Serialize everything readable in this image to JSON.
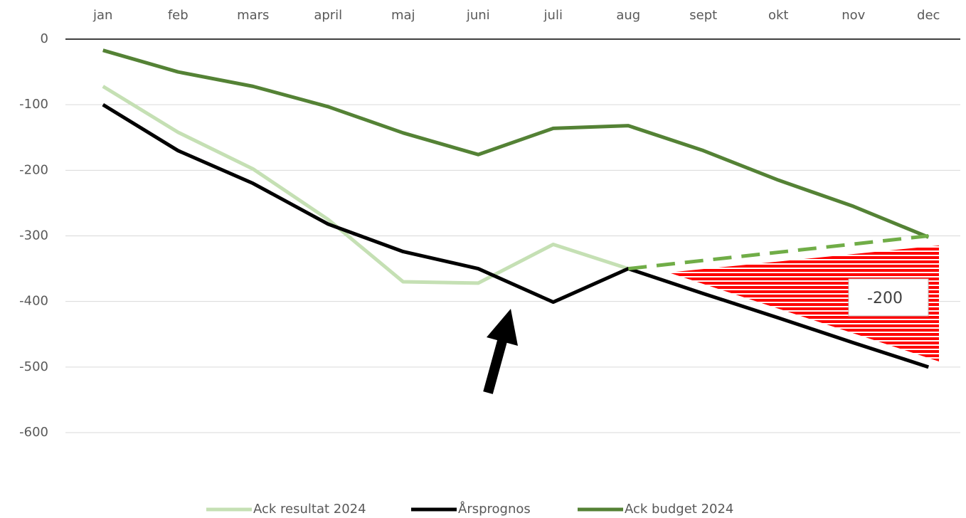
{
  "chart_data": {
    "type": "line",
    "categories": [
      "jan",
      "feb",
      "mars",
      "april",
      "maj",
      "juni",
      "juli",
      "aug",
      "sept",
      "okt",
      "nov",
      "dec"
    ],
    "series": [
      {
        "name": "Ack resultat 2024",
        "color": "#c5e0b4",
        "values": [
          -72,
          -142,
          -198,
          -275,
          -370,
          -372,
          -313,
          -350,
          null,
          null,
          null,
          null
        ]
      },
      {
        "name": "Årsprognos",
        "color": "#000000",
        "values": [
          -100,
          -170,
          -220,
          -282,
          -324,
          -350,
          -401,
          -350,
          -388,
          -425,
          -463,
          -500
        ]
      },
      {
        "name": "Ack budget 2024",
        "color": "#548235",
        "values": [
          -17,
          -50,
          -72,
          -103,
          -143,
          -176,
          -136,
          -132,
          -170,
          -215,
          -255,
          -302
        ]
      }
    ],
    "dashed_line": {
      "color": "#70ad47",
      "values": [
        null,
        null,
        null,
        null,
        null,
        null,
        null,
        -350,
        null,
        null,
        null,
        -300
      ]
    },
    "annotation": "-200",
    "ylim": [
      -600,
      0
    ],
    "yticks": [
      0,
      -100,
      -200,
      -300,
      -400,
      -500,
      -600
    ],
    "grid": true,
    "legend": "bottom"
  }
}
